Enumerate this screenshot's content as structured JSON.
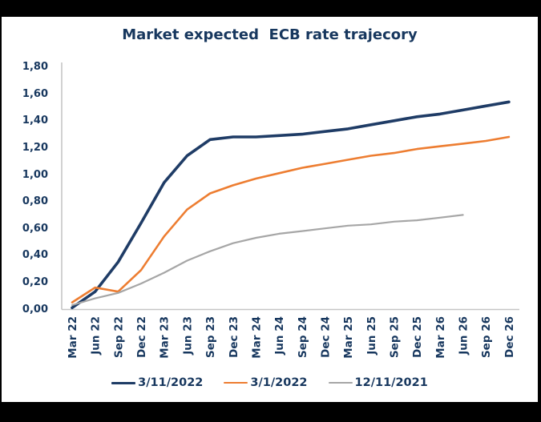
{
  "frame": {
    "border_color": "#000000",
    "card_color": "#ffffff"
  },
  "colors": {
    "title_text": "#17375E",
    "axis_line": "#C6C6C6",
    "tick_text": "#17375E",
    "series_navy": "#1F3C66",
    "series_orange": "#ED7D31",
    "series_gray": "#A6A6A6"
  },
  "chart_data": {
    "type": "line",
    "title": "Market expected  ECB rate trajecory",
    "categories": [
      "Mar 22",
      "Jun 22",
      "Sep 22",
      "Dec 22",
      "Mar 23",
      "Jun 23",
      "Sep 23",
      "Dec 23",
      "Mar 24",
      "Jun 24",
      "Sep 24",
      "Dec 24",
      "Mar 25",
      "Jun 25",
      "Sep 25",
      "Dec 25",
      "Mar 26",
      "Jun 26",
      "Sep 26",
      "Dec 26"
    ],
    "series": [
      {
        "name": "3/11/2022",
        "color": "#1F3C66",
        "stroke_width": 3.6,
        "values": [
          0.01,
          0.13,
          0.35,
          0.64,
          0.94,
          1.14,
          1.26,
          1.28,
          1.28,
          1.29,
          1.3,
          1.32,
          1.34,
          1.37,
          1.4,
          1.43,
          1.45,
          1.48,
          1.51,
          1.54
        ]
      },
      {
        "name": "3/1/2022",
        "color": "#ED7D31",
        "stroke_width": 2.6,
        "values": [
          0.05,
          0.16,
          0.13,
          0.29,
          0.54,
          0.74,
          0.86,
          0.92,
          0.97,
          1.01,
          1.05,
          1.08,
          1.11,
          1.14,
          1.16,
          1.19,
          1.21,
          1.23,
          1.25,
          1.28
        ]
      },
      {
        "name": "12/11/2021",
        "color": "#A6A6A6",
        "stroke_width": 2.2,
        "values": [
          0.03,
          0.08,
          0.12,
          0.19,
          0.27,
          0.36,
          0.43,
          0.49,
          0.53,
          0.56,
          0.58,
          0.6,
          0.62,
          0.63,
          0.65,
          0.66,
          0.68,
          0.7,
          null,
          null
        ]
      }
    ],
    "xlabel": "",
    "ylabel": "",
    "ylim": [
      0.0,
      1.8
    ],
    "ytick_step": 0.2,
    "ytick_labels": [
      "0,00",
      "0,20",
      "0,40",
      "0,60",
      "0,80",
      "1,00",
      "1,20",
      "1,40",
      "1,60",
      "1,80"
    ],
    "grid": false,
    "x_tick_rotation": 90,
    "legend_position": "bottom"
  }
}
